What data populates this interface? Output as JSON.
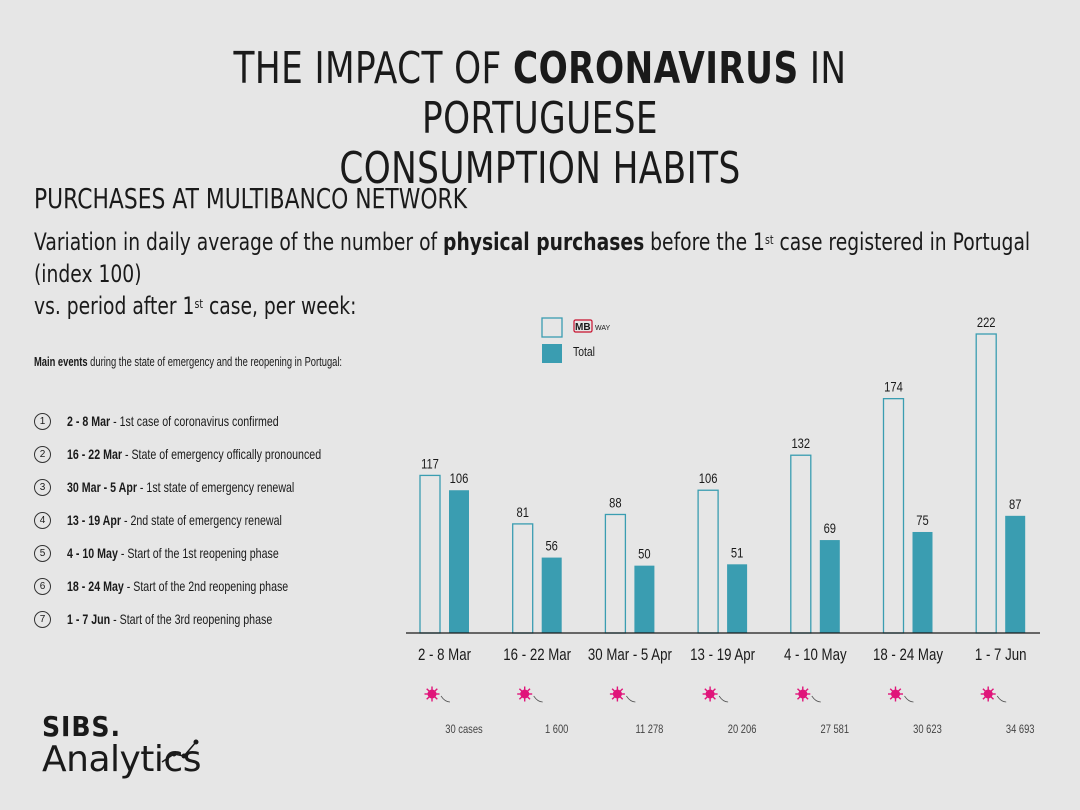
{
  "header": {
    "title_line1_pre": "THE IMPACT OF ",
    "title_line1_bold": "CORONAVIRUS",
    "title_line1_post": " IN PORTUGUESE",
    "title_line2": "CONSUMPTION HABITS",
    "section": "PURCHASES AT MULTIBANCO NETWORK",
    "subtitle_pre": "Variation in daily average of the number of ",
    "subtitle_bold": "physical purchases",
    "subtitle_mid1": " before the 1",
    "subtitle_sup1": "st",
    "subtitle_mid2": " case registered in Portugal (index 100)",
    "subtitle_line2_pre": "vs. period after 1",
    "subtitle_sup2": "st",
    "subtitle_line2_post": " case, per week:"
  },
  "events": {
    "title_bold": "Main events",
    "title_rest": " during the state of emergency and the reopening in Portugal:",
    "items": [
      {
        "num": "1",
        "date": "2 - 8 Mar",
        "text": " - 1st case of coronavirus confirmed"
      },
      {
        "num": "2",
        "date": "16 - 22 Mar",
        "text": " - State of emergency offically pronounced"
      },
      {
        "num": "3",
        "date": "30 Mar - 5 Apr",
        "text": " - 1st state of emergency renewal"
      },
      {
        "num": "4",
        "date": "13 - 19 Apr",
        "text": " - 2nd state of emergency renewal"
      },
      {
        "num": "5",
        "date": "4 - 10 May",
        "text": " - Start of the 1st reopening phase"
      },
      {
        "num": "6",
        "date": "18 - 24 May",
        "text": " - Start of the 2nd reopening phase"
      },
      {
        "num": "7",
        "date": "1 - 7 Jun",
        "text": "  - Start of the 3rd reopening phase"
      }
    ]
  },
  "legend": {
    "mbway_logo_text": "MB",
    "mbway_way": "WAY",
    "total": "Total"
  },
  "colors": {
    "total_fill": "#3a9db1",
    "mbway_stroke": "#3a9db1",
    "virus": "#e0147a",
    "background": "#e6e6e6"
  },
  "chart_data": {
    "type": "bar",
    "categories": [
      "2 - 8 Mar",
      "16 - 22 Mar",
      "30 Mar - 5 Apr",
      "13 - 19 Apr",
      "4 - 10 May",
      "18 - 24 May",
      "1 - 7 Jun"
    ],
    "series": [
      {
        "name": "MB WAY",
        "values": [
          117,
          81,
          88,
          106,
          132,
          174,
          222
        ]
      },
      {
        "name": "Total",
        "values": [
          106,
          56,
          50,
          51,
          69,
          75,
          87
        ]
      }
    ],
    "case_counts": [
      "30 cases",
      "1 600",
      "11 278",
      "20 206",
      "27 581",
      "30 623",
      "34 693"
    ],
    "ylim": [
      0,
      222
    ]
  },
  "brand": {
    "sibs": "SIBS.",
    "analytics": "Analytics"
  }
}
